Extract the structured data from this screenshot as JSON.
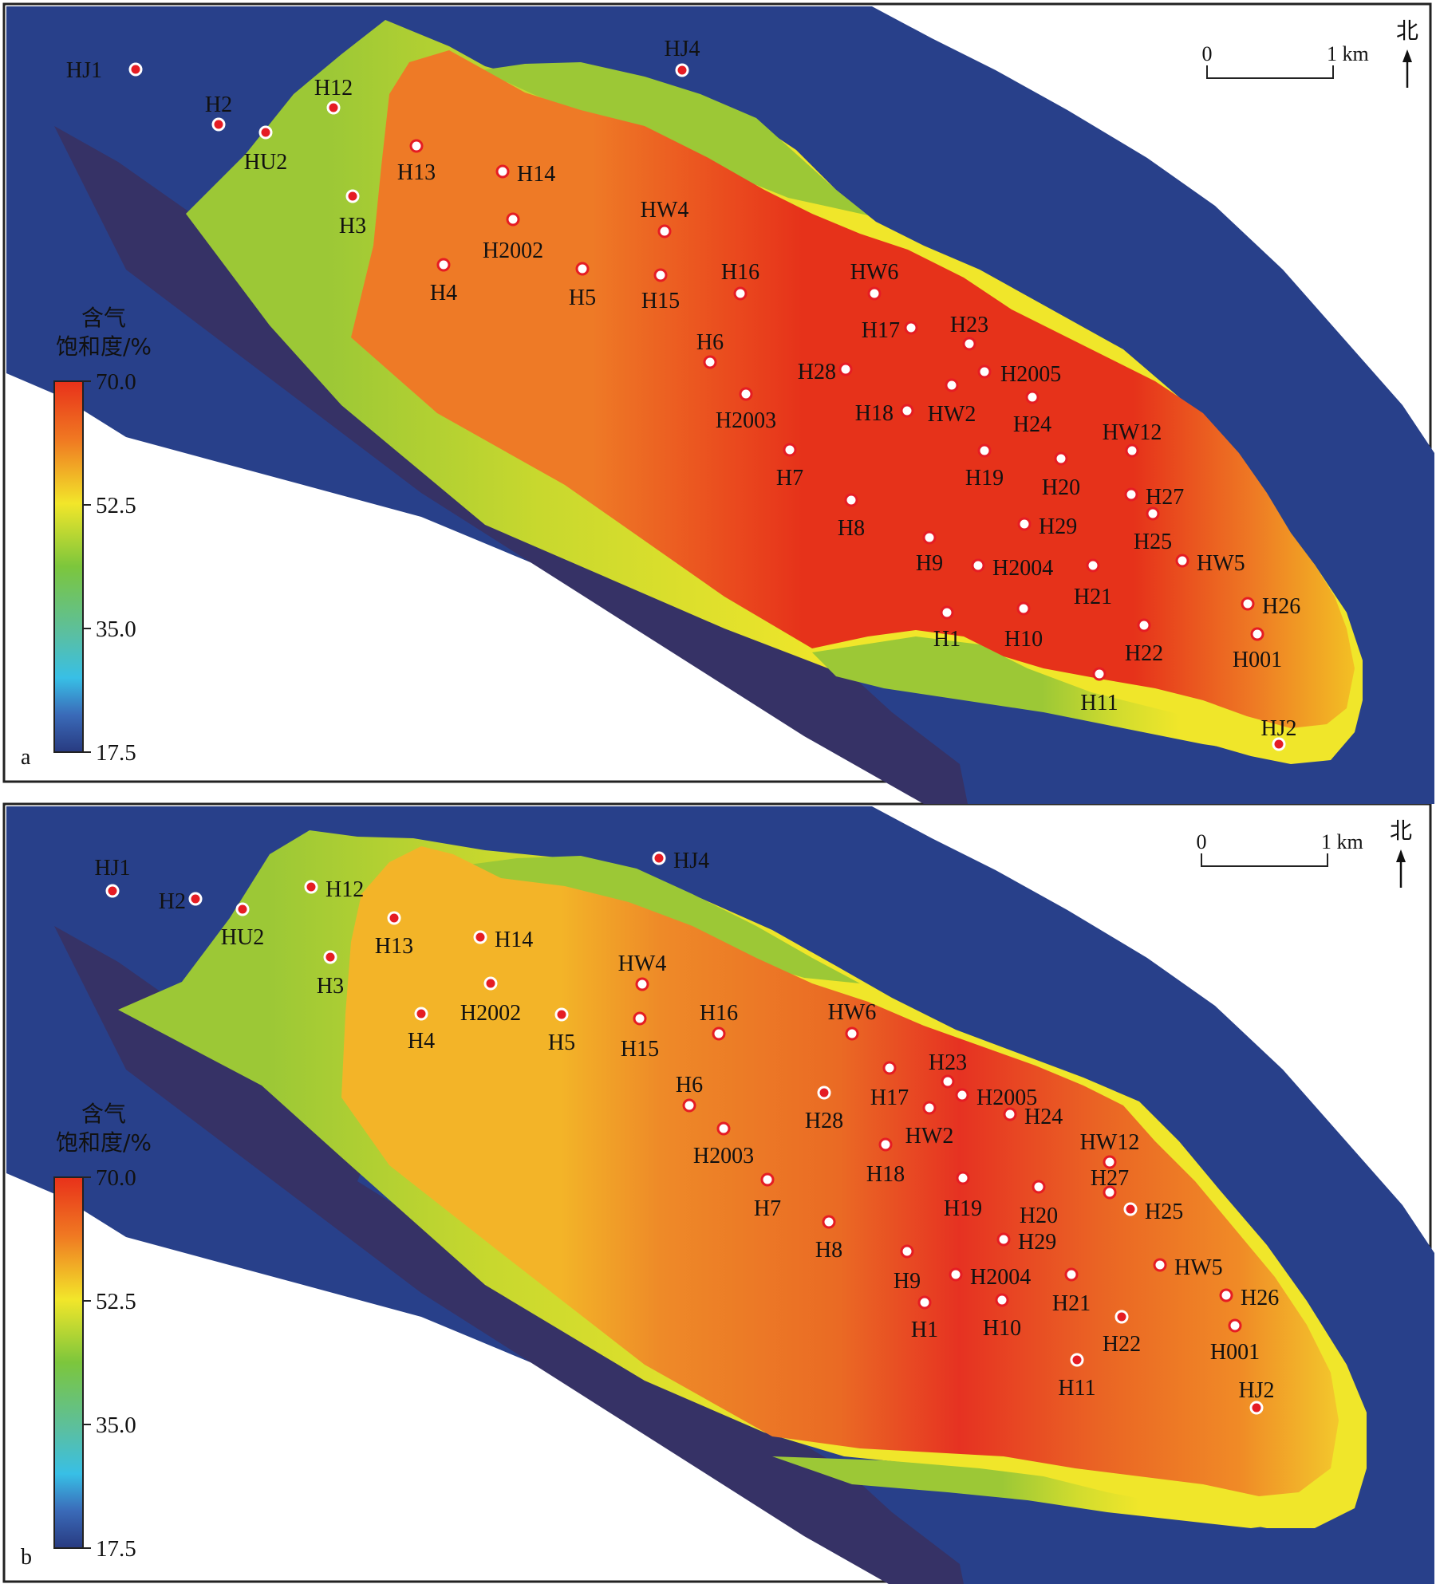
{
  "legend": {
    "title_line1": "含气",
    "title_line2": "饱和度/%",
    "ticks": [
      "70.0",
      "52.5",
      "35.0",
      "17.5"
    ],
    "colors": [
      "#e8311a",
      "#f2e62a",
      "#7cc63c",
      "#38bfe6",
      "#283a80"
    ]
  },
  "scale_bar": {
    "start_label": "0",
    "end_label": "1 km"
  },
  "north_label": "北",
  "colors": {
    "outside_zone": "#28408a",
    "shadow_edge": "#363266",
    "transition_yellow": "#f0e62a",
    "transition_green": "#9cc836",
    "core_red": "#e6321a",
    "core_orange": "#ee7a24",
    "well_dot": "#e51c23"
  },
  "panels": [
    {
      "letter": "a",
      "wells": [
        {
          "name": "HJ1",
          "filled": true
        },
        {
          "name": "H2",
          "filled": true
        },
        {
          "name": "HU2",
          "filled": true
        },
        {
          "name": "H12",
          "filled": true
        },
        {
          "name": "HJ4",
          "filled": true
        },
        {
          "name": "H3",
          "filled": true
        },
        {
          "name": "H13",
          "filled": false
        },
        {
          "name": "H14",
          "filled": false
        },
        {
          "name": "H2002",
          "filled": false
        },
        {
          "name": "H4",
          "filled": false
        },
        {
          "name": "HW4",
          "filled": false
        },
        {
          "name": "H5",
          "filled": false
        },
        {
          "name": "H15",
          "filled": false
        },
        {
          "name": "H16",
          "filled": false
        },
        {
          "name": "HW6",
          "filled": false
        },
        {
          "name": "H17",
          "filled": false
        },
        {
          "name": "H23",
          "filled": false
        },
        {
          "name": "H6",
          "filled": false
        },
        {
          "name": "H28",
          "filled": false
        },
        {
          "name": "H2005",
          "filled": false
        },
        {
          "name": "H2003",
          "filled": false
        },
        {
          "name": "H18",
          "filled": false
        },
        {
          "name": "HW2",
          "filled": false
        },
        {
          "name": "H24",
          "filled": false
        },
        {
          "name": "HW12",
          "filled": false
        },
        {
          "name": "H7",
          "filled": false
        },
        {
          "name": "H19",
          "filled": false
        },
        {
          "name": "H20",
          "filled": false
        },
        {
          "name": "H27",
          "filled": false
        },
        {
          "name": "H8",
          "filled": false
        },
        {
          "name": "H29",
          "filled": false
        },
        {
          "name": "H25",
          "filled": false
        },
        {
          "name": "H9",
          "filled": false
        },
        {
          "name": "H2004",
          "filled": false
        },
        {
          "name": "H21",
          "filled": false
        },
        {
          "name": "HW5",
          "filled": false
        },
        {
          "name": "H26",
          "filled": false
        },
        {
          "name": "H1",
          "filled": false
        },
        {
          "name": "H10",
          "filled": false
        },
        {
          "name": "H22",
          "filled": false
        },
        {
          "name": "H001",
          "filled": false
        },
        {
          "name": "H11",
          "filled": false
        },
        {
          "name": "HJ2",
          "filled": true
        }
      ]
    },
    {
      "letter": "b",
      "wells": [
        {
          "name": "HJ1",
          "filled": true
        },
        {
          "name": "H2",
          "filled": true
        },
        {
          "name": "HU2",
          "filled": true
        },
        {
          "name": "H12",
          "filled": true
        },
        {
          "name": "HJ4",
          "filled": true
        },
        {
          "name": "H3",
          "filled": true
        },
        {
          "name": "H13",
          "filled": true
        },
        {
          "name": "H14",
          "filled": true
        },
        {
          "name": "H2002",
          "filled": true
        },
        {
          "name": "H4",
          "filled": true
        },
        {
          "name": "HW4",
          "filled": false
        },
        {
          "name": "H5",
          "filled": true
        },
        {
          "name": "H15",
          "filled": false
        },
        {
          "name": "H16",
          "filled": false
        },
        {
          "name": "HW6",
          "filled": false
        },
        {
          "name": "H17",
          "filled": false
        },
        {
          "name": "H23",
          "filled": false
        },
        {
          "name": "H6",
          "filled": false
        },
        {
          "name": "H28",
          "filled": true
        },
        {
          "name": "H2005",
          "filled": false
        },
        {
          "name": "H2003",
          "filled": false
        },
        {
          "name": "H18",
          "filled": false
        },
        {
          "name": "HW2",
          "filled": false
        },
        {
          "name": "H24",
          "filled": false
        },
        {
          "name": "HW12",
          "filled": false
        },
        {
          "name": "H7",
          "filled": false
        },
        {
          "name": "H19",
          "filled": false
        },
        {
          "name": "H20",
          "filled": false
        },
        {
          "name": "H27",
          "filled": false
        },
        {
          "name": "H8",
          "filled": false
        },
        {
          "name": "H29",
          "filled": false
        },
        {
          "name": "H25",
          "filled": true
        },
        {
          "name": "H9",
          "filled": false
        },
        {
          "name": "H2004",
          "filled": false
        },
        {
          "name": "H21",
          "filled": false
        },
        {
          "name": "HW5",
          "filled": false
        },
        {
          "name": "H26",
          "filled": false
        },
        {
          "name": "H1",
          "filled": false
        },
        {
          "name": "H10",
          "filled": false
        },
        {
          "name": "H22",
          "filled": true
        },
        {
          "name": "H001",
          "filled": false
        },
        {
          "name": "H11",
          "filled": true
        },
        {
          "name": "HJ2",
          "filled": true
        }
      ]
    }
  ]
}
